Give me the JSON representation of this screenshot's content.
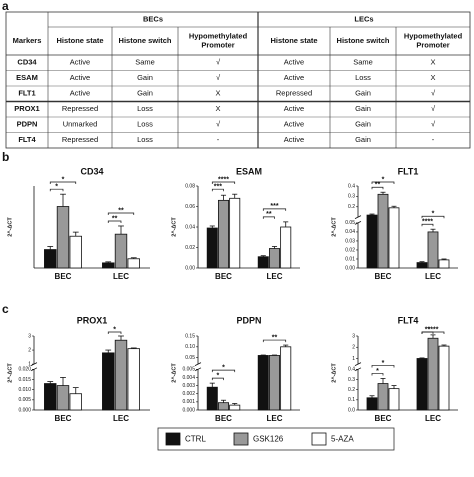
{
  "panel_labels": [
    "a",
    "b",
    "c"
  ],
  "table": {
    "group_headers": [
      "BECs",
      "LECs"
    ],
    "columns": [
      [
        "Markers"
      ],
      [
        "Histone state"
      ],
      [
        "Histone switch"
      ],
      [
        "Hypomethylated",
        "Promoter"
      ],
      [
        "Histone state"
      ],
      [
        "Histone switch"
      ],
      [
        "Hypomethylated",
        "Promoter"
      ]
    ],
    "rows": [
      [
        "CD34",
        "Active",
        "Same",
        "√",
        "Active",
        "Same",
        "X"
      ],
      [
        "ESAM",
        "Active",
        "Gain",
        "√",
        "Active",
        "Loss",
        "X"
      ],
      [
        "FLT1",
        "Active",
        "Gain",
        "X",
        "Repressed",
        "Gain",
        "√"
      ],
      [
        "PROX1",
        "Repressed",
        "Loss",
        "X",
        "Active",
        "Gain",
        "√"
      ],
      [
        "PDPN",
        "Unmarked",
        "Loss",
        "√",
        "Active",
        "Gain",
        "√"
      ],
      [
        "FLT4",
        "Repressed",
        "Loss",
        "-",
        "Active",
        "Gain",
        "-"
      ]
    ]
  },
  "legend": [
    {
      "name": "CTRL",
      "color": "#111111"
    },
    {
      "name": "GSK126",
      "color": "#999999"
    },
    {
      "name": "5-AZA",
      "color": "#ffffff"
    }
  ],
  "chart_data": [
    {
      "type": "bar",
      "title": "CD34",
      "ylabel": "2^-ΔCT",
      "categories": [
        "BEC",
        "LEC"
      ],
      "axes": [
        {
          "ylim": [
            0,
            8
          ],
          "yticks": []
        }
      ],
      "series": [
        {
          "values": [
            1.8,
            0.5
          ],
          "errors": [
            0.3,
            0.1
          ]
        },
        {
          "values": [
            6.0,
            3.3
          ],
          "errors": [
            1.2,
            0.8
          ]
        },
        {
          "values": [
            3.1,
            0.9
          ],
          "errors": [
            0.4,
            0.1
          ]
        }
      ],
      "brackets": [
        {
          "group": "BEC",
          "pair": [
            "CTRL",
            "GSK126"
          ],
          "label": "*"
        },
        {
          "group": "BEC",
          "pair": [
            "CTRL",
            "5-AZA"
          ],
          "label": "*"
        },
        {
          "group": "LEC",
          "pair": [
            "CTRL",
            "GSK126"
          ],
          "label": "**"
        },
        {
          "group": "LEC",
          "pair": [
            "CTRL",
            "5-AZA"
          ],
          "label": "**"
        }
      ]
    },
    {
      "type": "bar",
      "title": "ESAM",
      "ylabel": "2^-ΔCT",
      "categories": [
        "BEC",
        "LEC"
      ],
      "axes": [
        {
          "ylim": [
            0,
            0.08
          ],
          "yticks": [
            {
              "value": 0,
              "label": "0.00"
            },
            0.02,
            0.04,
            0.06,
            0.08
          ]
        }
      ],
      "series": [
        {
          "values": [
            0.039,
            0.011
          ],
          "errors": [
            0.002,
            0.001
          ]
        },
        {
          "values": [
            0.066,
            0.019
          ],
          "errors": [
            0.005,
            0.002
          ]
        },
        {
          "values": [
            0.068,
            0.04
          ],
          "errors": [
            0.004,
            0.005
          ]
        }
      ],
      "brackets": [
        {
          "group": "BEC",
          "pair": [
            "CTRL",
            "GSK126"
          ],
          "label": "***"
        },
        {
          "group": "BEC",
          "pair": [
            "CTRL",
            "5-AZA"
          ],
          "label": "****"
        },
        {
          "group": "LEC",
          "pair": [
            "CTRL",
            "GSK126"
          ],
          "label": "**"
        },
        {
          "group": "LEC",
          "pair": [
            "CTRL",
            "5-AZA"
          ],
          "label": "***"
        }
      ]
    },
    {
      "type": "bar",
      "title": "FLT1",
      "ylabel": "2^-ΔCT",
      "categories": [
        "BEC",
        "LEC"
      ],
      "axes": [
        {
          "ylim": [
            0,
            0.05
          ],
          "yticks": [
            {
              "value": 0,
              "label": "0.00"
            },
            0.01,
            0.02,
            0.03,
            0.04,
            0.05
          ]
        },
        {
          "ylim": [
            0.1,
            0.4
          ],
          "yticks": [
            0.2,
            0.3,
            0.4
          ]
        }
      ],
      "series": [
        {
          "values": [
            0.12,
            0.006
          ],
          "errors": [
            0.01,
            0.001
          ]
        },
        {
          "values": [
            0.32,
            0.04
          ],
          "errors": [
            0.02,
            0.003
          ]
        },
        {
          "values": [
            0.19,
            0.009
          ],
          "errors": [
            0.015,
            0.001
          ]
        }
      ],
      "brackets": [
        {
          "group": "BEC",
          "pair": [
            "CTRL",
            "GSK126"
          ],
          "label": "**"
        },
        {
          "group": "BEC",
          "pair": [
            "CTRL",
            "5-AZA"
          ],
          "label": "*"
        },
        {
          "group": "LEC",
          "pair": [
            "CTRL",
            "GSK126"
          ],
          "label": "****"
        },
        {
          "group": "LEC",
          "pair": [
            "CTRL",
            "5-AZA"
          ],
          "label": "*"
        }
      ]
    },
    {
      "type": "bar",
      "title": "PROX1",
      "ylabel": "2^-ΔCT",
      "categories": [
        "BEC",
        "LEC"
      ],
      "axes": [
        {
          "ylim": [
            0,
            0.02
          ],
          "yticks": [
            {
              "value": 0,
              "label": "0.000"
            },
            0.005,
            {
              "value": 0.01,
              "label": "0.010"
            },
            0.015,
            {
              "value": 0.02,
              "label": "0.020"
            }
          ]
        },
        {
          "ylim": [
            1,
            3
          ],
          "yticks": [
            1,
            2,
            3
          ]
        }
      ],
      "series": [
        {
          "values": [
            0.013,
            1.8
          ],
          "errors": [
            0.001,
            0.2
          ]
        },
        {
          "values": [
            0.012,
            2.7
          ],
          "errors": [
            0.004,
            0.3
          ]
        },
        {
          "values": [
            0.008,
            2.1
          ],
          "errors": [
            0.003,
            0.05
          ]
        }
      ],
      "brackets": [
        {
          "group": "LEC",
          "pair": [
            "CTRL",
            "GSK126"
          ],
          "label": "*"
        }
      ]
    },
    {
      "type": "bar",
      "title": "PDPN",
      "ylabel": "2^-ΔCT",
      "categories": [
        "BEC",
        "LEC"
      ],
      "axes": [
        {
          "ylim": [
            0,
            0.005
          ],
          "yticks": [
            {
              "value": 0,
              "label": "0.000"
            },
            0.001,
            0.002,
            0.003,
            0.004,
            0.005
          ]
        },
        {
          "ylim": [
            0.02,
            0.15
          ],
          "yticks": [
            0.05,
            {
              "value": 0.1,
              "label": "0.10"
            },
            0.15
          ]
        }
      ],
      "series": [
        {
          "values": [
            0.0028,
            0.06
          ],
          "errors": [
            0.0005,
            0.002
          ]
        },
        {
          "values": [
            0.0009,
            0.06
          ],
          "errors": [
            0.0003,
            0.002
          ]
        },
        {
          "values": [
            0.0006,
            0.1
          ],
          "errors": [
            0.0002,
            0.008
          ]
        }
      ],
      "brackets": [
        {
          "group": "BEC",
          "pair": [
            "CTRL",
            "GSK126"
          ],
          "label": "*"
        },
        {
          "group": "BEC",
          "pair": [
            "CTRL",
            "5-AZA"
          ],
          "label": "*"
        },
        {
          "group": "LEC",
          "pair": [
            "CTRL",
            "5-AZA"
          ],
          "label": "**"
        }
      ]
    },
    {
      "type": "bar",
      "title": "FLT4",
      "ylabel": "2^-ΔCT",
      "categories": [
        "BEC",
        "LEC"
      ],
      "axes": [
        {
          "ylim": [
            0,
            0.4
          ],
          "yticks": [
            {
              "value": 0,
              "label": "0.0"
            },
            0.1,
            0.2,
            0.3,
            0.4
          ]
        },
        {
          "ylim": [
            0.5,
            3
          ],
          "yticks": [
            1,
            2,
            3
          ]
        }
      ],
      "series": [
        {
          "values": [
            0.12,
            1.0
          ],
          "errors": [
            0.02,
            0.05
          ]
        },
        {
          "values": [
            0.26,
            2.8
          ],
          "errors": [
            0.05,
            0.3
          ]
        },
        {
          "values": [
            0.21,
            2.1
          ],
          "errors": [
            0.03,
            0.1
          ]
        }
      ],
      "brackets": [
        {
          "group": "BEC",
          "pair": [
            "CTRL",
            "GSK126"
          ],
          "label": "*"
        },
        {
          "group": "BEC",
          "pair": [
            "CTRL",
            "5-AZA"
          ],
          "label": "*"
        },
        {
          "group": "LEC",
          "pair": [
            "CTRL",
            "GSK126"
          ],
          "label": "**"
        },
        {
          "group": "LEC",
          "pair": [
            "CTRL",
            "5-AZA"
          ],
          "label": "****"
        }
      ]
    }
  ]
}
